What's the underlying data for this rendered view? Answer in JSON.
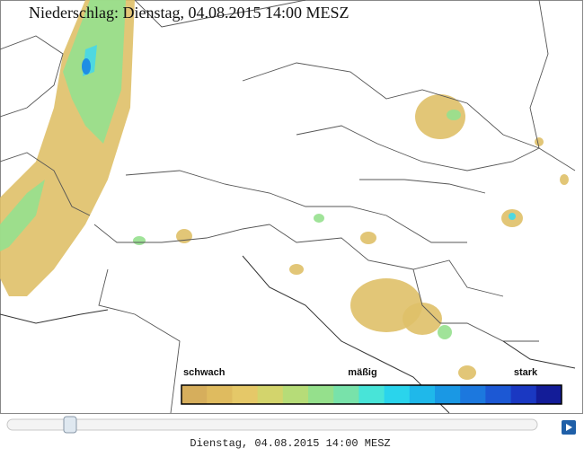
{
  "map": {
    "title": "Niederschlag: Dienstag, 04.08.2015 14:00  MESZ"
  },
  "legend": {
    "labels": [
      "schwach",
      "mäßig",
      "stark"
    ],
    "colors": [
      "#d6ae5c",
      "#dfbb5f",
      "#e5c868",
      "#d3d46c",
      "#b6dc78",
      "#95e08c",
      "#78e2aa",
      "#48e4d8",
      "#2ad4ec",
      "#1fb8ea",
      "#1a98e4",
      "#1c78de",
      "#1c58d4",
      "#1a38c2",
      "#131c98"
    ]
  },
  "player": {
    "timestamp": "Dienstag, 04.08.2015 14:00 MESZ"
  }
}
